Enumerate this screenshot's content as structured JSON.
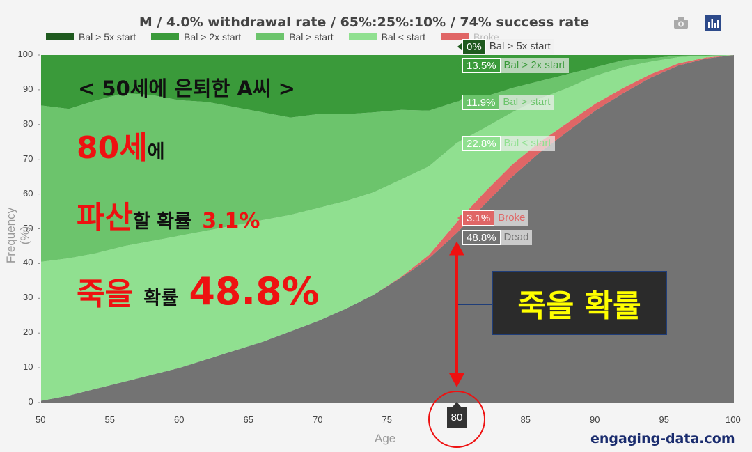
{
  "chart_data": {
    "type": "area",
    "title": "M / 4.0% withdrawal rate / 65%:25%:10% / 74% success rate",
    "xlabel": "Age",
    "ylabel": "Frequency (%)",
    "xlim": [
      50,
      100
    ],
    "ylim": [
      0,
      100
    ],
    "x_ticks": [
      "50",
      "55",
      "60",
      "65",
      "70",
      "75",
      "80",
      "85",
      "90",
      "95",
      "100"
    ],
    "y_ticks": [
      "0",
      "10",
      "20",
      "30",
      "40",
      "50",
      "60",
      "70",
      "80",
      "90",
      "100"
    ],
    "legend_position": "top-left",
    "x": [
      50,
      52,
      54,
      56,
      58,
      60,
      62,
      64,
      66,
      68,
      70,
      72,
      74,
      76,
      78,
      80,
      82,
      84,
      86,
      88,
      90,
      92,
      94,
      96,
      98,
      100
    ],
    "series": [
      {
        "name": "Dead",
        "color": "#737373",
        "values": [
          0.5,
          2,
          4,
          6,
          8,
          10,
          12.5,
          15,
          17.5,
          20.5,
          23.5,
          27,
          31,
          36,
          41.5,
          48.8,
          57,
          65,
          72,
          78,
          84,
          89,
          93.5,
          97,
          99,
          100
        ]
      },
      {
        "name": "Broke",
        "color": "#e06666",
        "values": [
          0,
          0,
          0,
          0,
          0,
          0,
          0,
          0,
          0,
          0,
          0,
          0,
          0,
          0.2,
          1,
          3.1,
          3.5,
          3.5,
          3,
          2.5,
          2,
          1.5,
          1,
          0.6,
          0.3,
          0
        ]
      },
      {
        "name": "Bal < start",
        "color": "#90e090",
        "values": [
          40,
          39.5,
          39,
          39,
          38.5,
          38,
          37,
          36,
          35,
          33.5,
          32.5,
          31,
          29.5,
          28,
          25.5,
          22.8,
          18.5,
          15,
          12.5,
          10,
          8,
          6,
          3.6,
          1.8,
          0.5,
          0
        ]
      },
      {
        "name": "Bal > start",
        "color": "#6cc46c",
        "values": [
          45,
          43,
          44,
          44,
          42,
          39,
          37,
          34,
          31,
          28,
          27,
          25,
          23,
          20,
          16,
          11.9,
          9,
          7,
          5,
          4,
          2.5,
          2,
          1,
          0.4,
          0.1,
          0
        ]
      },
      {
        "name": "Bal > 2x start",
        "color": "#3a9a3a",
        "values": [
          14.5,
          15.5,
          13,
          11,
          11.5,
          13,
          13.5,
          15,
          16.5,
          18,
          17,
          17,
          16.5,
          15.8,
          16,
          13.5,
          12,
          9.5,
          7.5,
          5.5,
          3.5,
          1.5,
          0.9,
          0.2,
          0.1,
          0
        ]
      },
      {
        "name": "Bal > 5x start",
        "color": "#1f5a1f",
        "values": [
          0,
          0,
          0,
          0,
          0,
          0,
          0,
          0,
          0,
          0,
          0,
          0,
          0,
          0,
          0,
          0,
          0,
          0,
          0,
          0,
          0,
          0,
          0,
          0,
          0,
          0
        ]
      }
    ],
    "hover_age": "80",
    "hover_labels": [
      {
        "value": "0%",
        "name": "Bal > 5x start",
        "color": "#1f5a1f",
        "text_color": "#444"
      },
      {
        "value": "13.5%",
        "name": "Bal > 2x start",
        "color": "#3a9a3a",
        "text_color": "#3a9a3a"
      },
      {
        "value": "11.9%",
        "name": "Bal > start",
        "color": "#6cc46c",
        "text_color": "#6cc46c"
      },
      {
        "value": "22.8%",
        "name": "Bal < start",
        "color": "#90e090",
        "text_color": "#90e090"
      },
      {
        "value": "3.1%",
        "name": "Broke",
        "color": "#e06666",
        "text_color": "#e06666"
      },
      {
        "value": "48.8%",
        "name": "Dead",
        "color": "#737373",
        "text_color": "#737373"
      }
    ]
  },
  "overlay": {
    "heading": "< 50세에 은퇴한 A씨 >",
    "age_big": "80세",
    "age_suffix": "에",
    "bankrupt_big": "파산",
    "bankrupt_mid": "할 확률",
    "bankrupt_pct": "3.1%",
    "death_big": "죽을",
    "death_mid": "확률",
    "death_pct": "48.8%",
    "box_label": "죽을 확률"
  },
  "watermark": "engaging-data.com",
  "icons": [
    "camera-icon",
    "bar-chart-icon"
  ],
  "colors": {
    "highlight_red": "#ee1111",
    "box_text": "#ffff00",
    "watermark": "#1a2c6e"
  }
}
